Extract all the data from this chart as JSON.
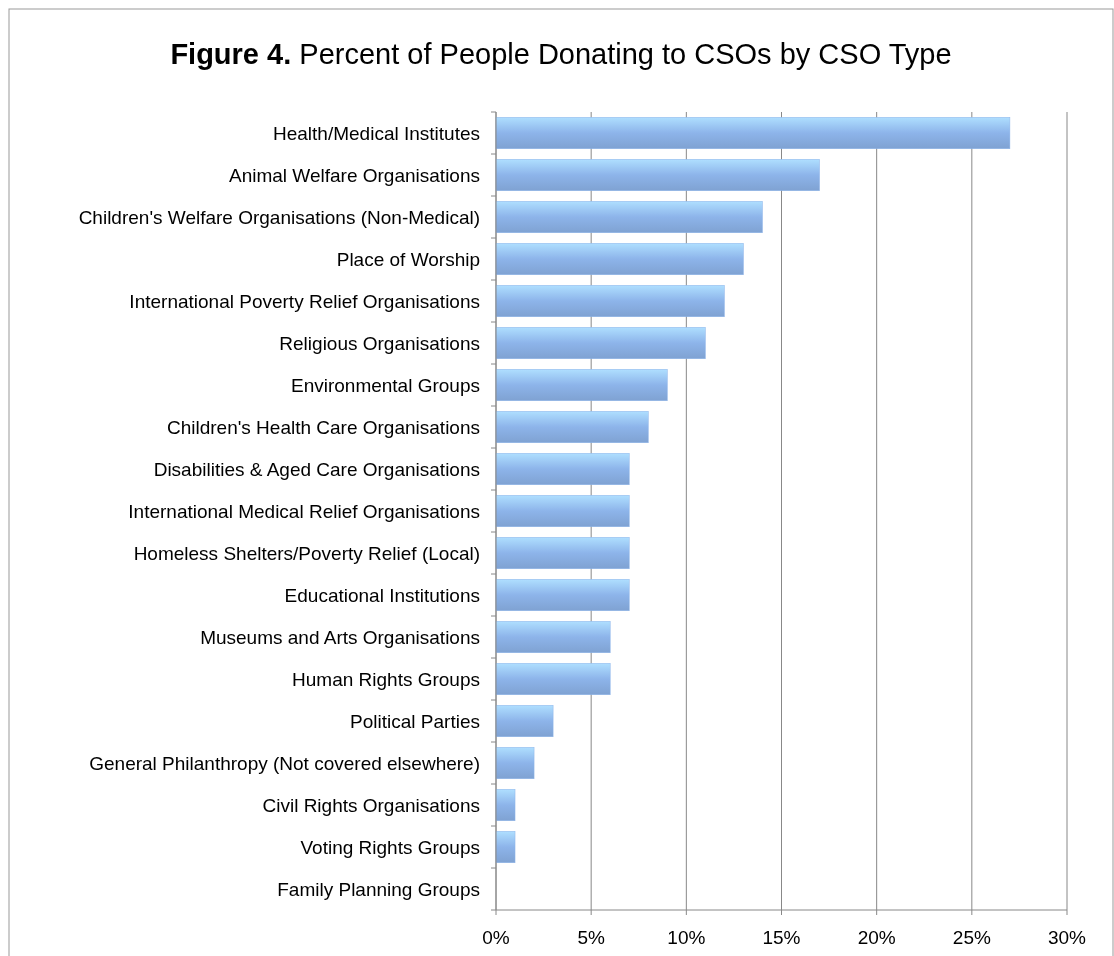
{
  "chart_data": {
    "type": "bar",
    "orientation": "horizontal",
    "title": "Figure 4. Percent of People Donating to CSOs by CSO Type",
    "categories": [
      "Health/Medical Institutes",
      "Animal Welfare Organisations",
      "Children's Welfare Organisations (Non-Medical)",
      "Place of Worship",
      "International Poverty Relief Organisations",
      "Religious Organisations",
      "Environmental Groups",
      "Children's Health Care Organisations",
      "Disabilities & Aged Care Organisations",
      "International Medical Relief Organisations",
      "Homeless Shelters/Poverty Relief (Local)",
      "Educational Institutions",
      "Museums and Arts Organisations",
      "Human Rights Groups",
      "Political Parties",
      "General Philanthropy (Not covered elsewhere)",
      "Civil Rights Organisations",
      "Voting Rights Groups",
      "Family Planning Groups"
    ],
    "values": [
      27,
      17,
      14,
      13,
      12,
      11,
      9,
      8,
      7,
      7,
      7,
      7,
      6,
      6,
      3,
      2,
      1,
      1,
      0
    ],
    "color": "#8db4ea",
    "xlim": [
      0,
      30
    ],
    "xticks": [
      {
        "value": 0,
        "label": "0%"
      },
      {
        "value": 5,
        "label": "5%"
      },
      {
        "value": 10,
        "label": "10%"
      },
      {
        "value": 15,
        "label": "15%"
      },
      {
        "value": 20,
        "label": "20%"
      },
      {
        "value": 25,
        "label": "25%"
      },
      {
        "value": 30,
        "label": "30%"
      }
    ],
    "grid": "x"
  }
}
